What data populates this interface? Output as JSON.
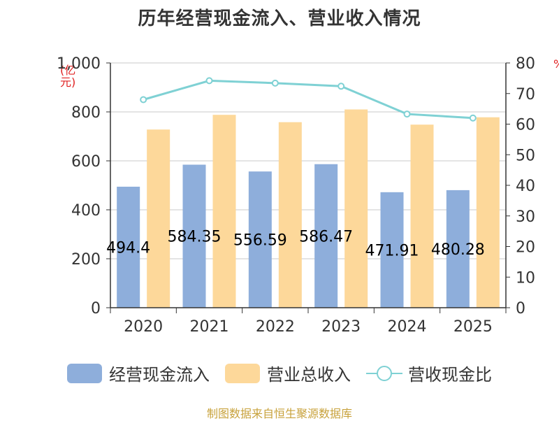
{
  "chart_data": {
    "type": "bar",
    "title": "历年经营现金流入、营业收入情况",
    "left_unit": "(亿元)",
    "right_unit": "%",
    "categories": [
      "2020",
      "2021",
      "2022",
      "2023",
      "2024",
      "2025"
    ],
    "series": [
      {
        "name": "经营现金流入",
        "type": "bar",
        "axis": "left",
        "color": "#8eaedb",
        "values": [
          494.4,
          584.35,
          556.59,
          586.47,
          471.91,
          480.28
        ],
        "labels": [
          "494.4",
          "584.35",
          "556.59",
          "586.47",
          "471.91",
          "480.28"
        ]
      },
      {
        "name": "营业总收入",
        "type": "bar",
        "axis": "left",
        "color": "#fdd89a",
        "values": [
          728,
          788,
          758,
          810,
          748,
          778
        ]
      },
      {
        "name": "营收现金比",
        "type": "line",
        "axis": "right",
        "color": "#7fd1d4",
        "values": [
          68,
          74.2,
          73.4,
          72.4,
          63.3,
          62
        ]
      }
    ],
    "left_axis": {
      "ylim": [
        0,
        1000
      ],
      "ticks": [
        "0",
        "200",
        "400",
        "600",
        "800",
        "1,000"
      ]
    },
    "right_axis": {
      "ylim": [
        0,
        80
      ],
      "ticks": [
        "0",
        "10",
        "20",
        "30",
        "40",
        "50",
        "60",
        "70",
        "80"
      ]
    },
    "grid": true,
    "legend_position": "bottom"
  },
  "footer": "制图数据来自恒生聚源数据库"
}
